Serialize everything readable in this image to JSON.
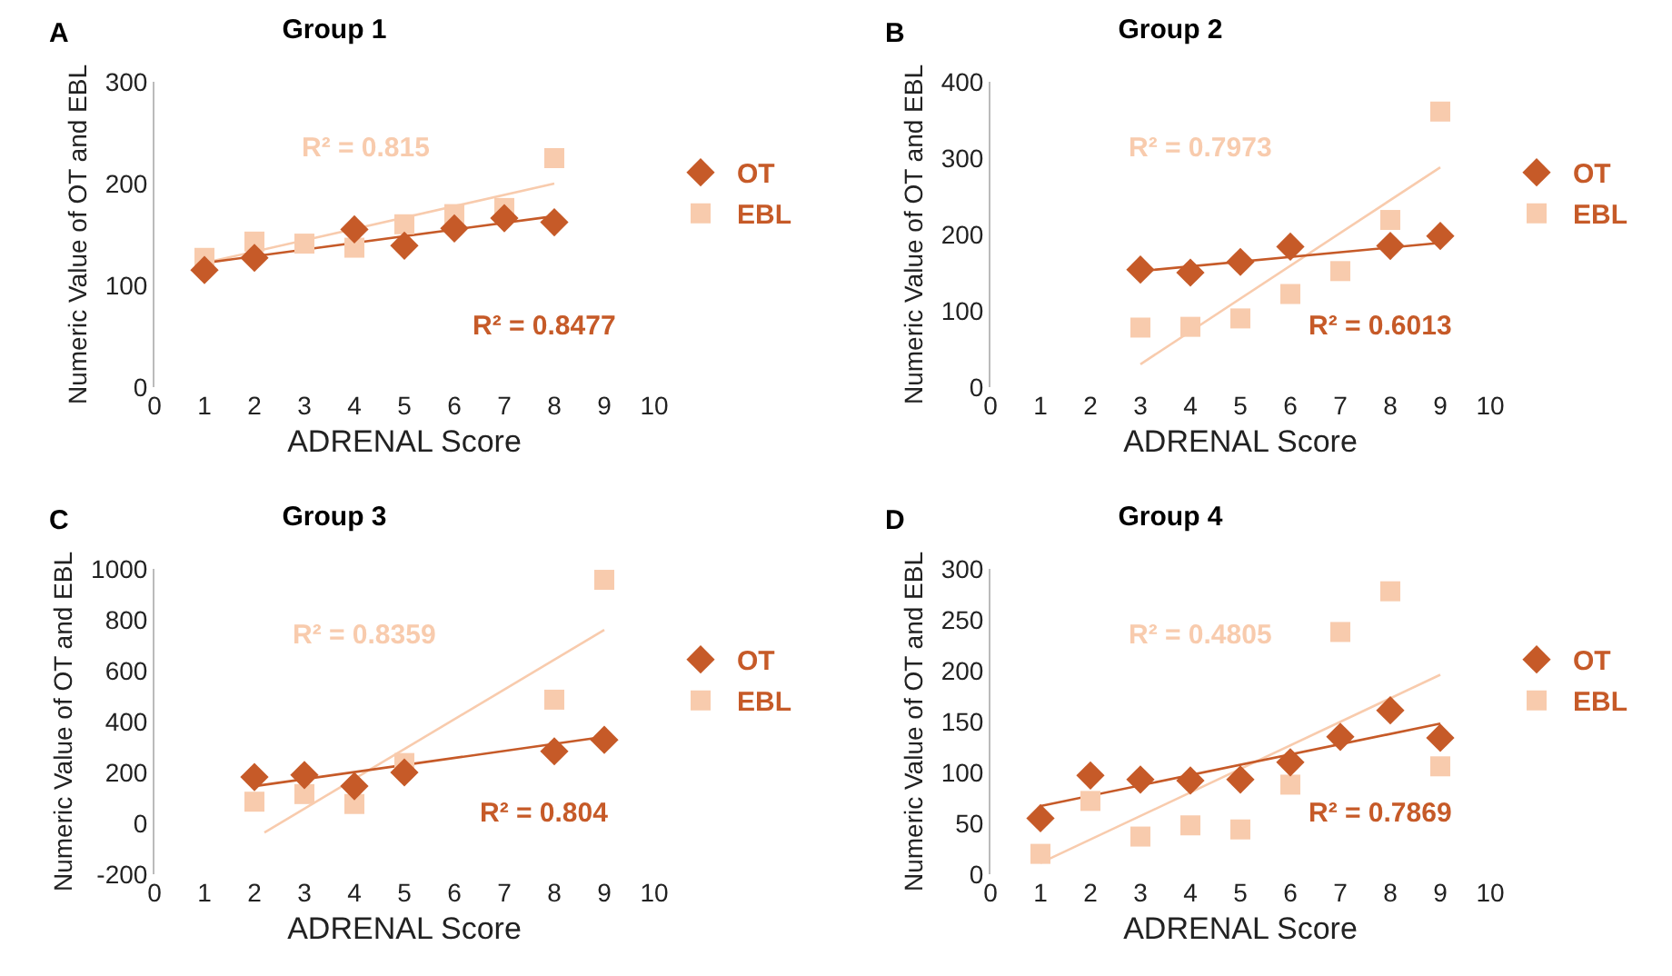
{
  "chart_data": [
    {
      "type": "scatter",
      "title": "Group 1",
      "xlabel": "ADRENAL Score",
      "ylabel": "Numeric Value of OT and EBL",
      "annotations": [
        "A",
        "R² = 0.815",
        "R² = 0.8477"
      ],
      "xlim": [
        0,
        10
      ],
      "xticks": [
        0,
        1,
        2,
        3,
        4,
        5,
        6,
        7,
        8,
        9,
        10
      ],
      "ylim": [
        0,
        300
      ],
      "yticks": [
        0,
        100,
        200,
        300
      ],
      "legend": "right",
      "grid": false,
      "series": [
        {
          "name": "OT",
          "color": "#c65a28",
          "marker": "diamond",
          "x": [
            1,
            2,
            4,
            5,
            6,
            7,
            8
          ],
          "values": [
            115,
            127,
            155,
            139,
            156,
            166,
            162
          ]
        },
        {
          "name": "EBL",
          "color": "#f8cbad",
          "marker": "square",
          "x": [
            1,
            2,
            3,
            4,
            5,
            6,
            7,
            8
          ],
          "values": [
            127,
            143,
            141,
            137,
            160,
            170,
            176,
            225
          ]
        },
        {
          "type": "line",
          "color": "#c65a28",
          "x": [
            1,
            8
          ],
          "values": [
            122,
            168
          ]
        },
        {
          "type": "line",
          "color": "#f8cbad",
          "x": [
            1,
            8
          ],
          "values": [
            122,
            200
          ]
        }
      ]
    },
    {
      "type": "scatter",
      "title": "Group 2",
      "xlabel": "ADRENAL Score",
      "ylabel": "Numeric Value of OT and EBL",
      "annotations": [
        "B",
        "R² = 0.7973",
        "R² = 0.6013"
      ],
      "xlim": [
        0,
        10
      ],
      "xticks": [
        0,
        1,
        2,
        3,
        4,
        5,
        6,
        7,
        8,
        9,
        10
      ],
      "ylim": [
        0,
        400
      ],
      "yticks": [
        0,
        100,
        200,
        300,
        400
      ],
      "legend": "right",
      "grid": false,
      "series": [
        {
          "name": "OT",
          "color": "#c65a28",
          "marker": "diamond",
          "x": [
            3,
            4,
            5,
            6,
            8,
            9
          ],
          "values": [
            154,
            150,
            164,
            184,
            185,
            198
          ]
        },
        {
          "name": "EBL",
          "color": "#f8cbad",
          "marker": "square",
          "x": [
            3,
            4,
            5,
            6,
            7,
            8,
            9
          ],
          "values": [
            78,
            79,
            90,
            122,
            152,
            219,
            361
          ]
        },
        {
          "type": "line",
          "color": "#c65a28",
          "x": [
            3,
            9
          ],
          "values": [
            152,
            189
          ]
        },
        {
          "type": "line",
          "color": "#f8cbad",
          "x": [
            3,
            9
          ],
          "values": [
            30,
            288
          ]
        }
      ]
    },
    {
      "type": "scatter",
      "title": "Group 3",
      "xlabel": "ADRENAL Score",
      "ylabel": "Numeric Value of OT and EBL",
      "annotations": [
        "C",
        "R² = 0.8359",
        "R² = 0.804"
      ],
      "xlim": [
        0,
        10
      ],
      "xticks": [
        0,
        1,
        2,
        3,
        4,
        5,
        6,
        7,
        8,
        9,
        10
      ],
      "ylim": [
        -200,
        1000
      ],
      "yticks": [
        -200,
        0,
        200,
        400,
        600,
        800,
        1000
      ],
      "legend": "right",
      "grid": false,
      "series": [
        {
          "name": "OT",
          "color": "#c65a28",
          "marker": "diamond",
          "x": [
            2,
            3,
            4,
            5,
            8,
            9
          ],
          "values": [
            182,
            190,
            146,
            200,
            283,
            328
          ]
        },
        {
          "name": "EBL",
          "color": "#f8cbad",
          "marker": "square",
          "x": [
            2,
            3,
            4,
            5,
            8,
            9
          ],
          "values": [
            85,
            115,
            76,
            237,
            486,
            957
          ]
        },
        {
          "type": "line",
          "color": "#c65a28",
          "x": [
            2,
            9
          ],
          "values": [
            146,
            340
          ]
        },
        {
          "type": "line",
          "color": "#f8cbad",
          "x": [
            2.2,
            9
          ],
          "values": [
            -36,
            760
          ]
        }
      ]
    },
    {
      "type": "scatter",
      "title": "Group 4",
      "xlabel": "ADRENAL Score",
      "ylabel": "Numeric Value of OT and EBL",
      "annotations": [
        "D",
        "R² = 0.4805",
        "R² = 0.7869"
      ],
      "xlim": [
        0,
        10
      ],
      "xticks": [
        0,
        1,
        2,
        3,
        4,
        5,
        6,
        7,
        8,
        9,
        10
      ],
      "ylim": [
        0,
        300
      ],
      "yticks": [
        0,
        50,
        100,
        150,
        200,
        250,
        300
      ],
      "legend": "right",
      "grid": false,
      "series": [
        {
          "name": "OT",
          "color": "#c65a28",
          "marker": "diamond",
          "x": [
            1,
            2,
            3,
            4,
            5,
            6,
            7,
            8,
            9
          ],
          "values": [
            55,
            97,
            93,
            92,
            93,
            110,
            135,
            161,
            134
          ]
        },
        {
          "name": "EBL",
          "color": "#f8cbad",
          "marker": "square",
          "x": [
            1,
            2,
            3,
            4,
            5,
            6,
            7,
            8,
            9
          ],
          "values": [
            20,
            72,
            37,
            48,
            44,
            88,
            238,
            278,
            106
          ]
        },
        {
          "type": "line",
          "color": "#c65a28",
          "x": [
            1,
            9
          ],
          "values": [
            67,
            148
          ]
        },
        {
          "type": "line",
          "color": "#f8cbad",
          "x": [
            1,
            9
          ],
          "values": [
            11,
            196
          ]
        }
      ]
    }
  ]
}
